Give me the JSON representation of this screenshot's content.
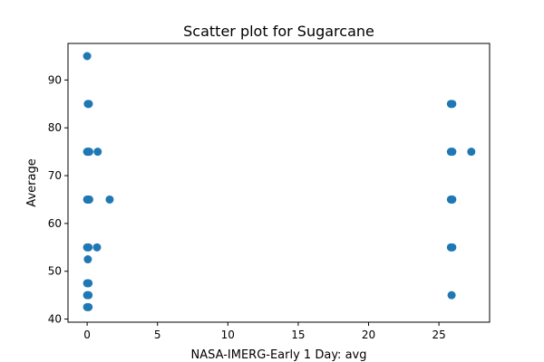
{
  "chart_data": {
    "type": "scatter",
    "title": "Scatter plot for Sugarcane",
    "xlabel": "NASA-IMERG-Early 1 Day: avg",
    "ylabel": "Average",
    "xlim": [
      -1.36,
      28.6
    ],
    "ylim": [
      39.35,
      97.65
    ],
    "x_ticks": [
      0,
      5,
      10,
      15,
      20,
      25
    ],
    "y_ticks": [
      40,
      50,
      60,
      70,
      80,
      90
    ],
    "x_tick_labels": [
      "0",
      "5",
      "10",
      "15",
      "20",
      "25"
    ],
    "y_tick_labels": [
      "40",
      "50",
      "60",
      "70",
      "80",
      "90"
    ],
    "grid": false,
    "marker_color": "#1f77b4",
    "series": [
      {
        "points": [
          {
            "x": 0.0,
            "y": 95
          },
          {
            "x": 0.05,
            "y": 85
          },
          {
            "x": 0.12,
            "y": 85
          },
          {
            "x": 0.0,
            "y": 75
          },
          {
            "x": 0.05,
            "y": 75
          },
          {
            "x": 0.1,
            "y": 75
          },
          {
            "x": 0.15,
            "y": 75
          },
          {
            "x": 0.75,
            "y": 75
          },
          {
            "x": 0.0,
            "y": 65
          },
          {
            "x": 0.05,
            "y": 65
          },
          {
            "x": 0.1,
            "y": 65
          },
          {
            "x": 0.15,
            "y": 65
          },
          {
            "x": 1.6,
            "y": 65
          },
          {
            "x": 0.0,
            "y": 55
          },
          {
            "x": 0.1,
            "y": 55
          },
          {
            "x": 0.7,
            "y": 55
          },
          {
            "x": 0.05,
            "y": 52.5
          },
          {
            "x": 0.0,
            "y": 47.5
          },
          {
            "x": 0.1,
            "y": 47.5
          },
          {
            "x": 0.0,
            "y": 45
          },
          {
            "x": 0.1,
            "y": 45
          },
          {
            "x": 0.0,
            "y": 42.5
          },
          {
            "x": 0.1,
            "y": 42.5
          },
          {
            "x": 25.85,
            "y": 85
          },
          {
            "x": 25.95,
            "y": 85
          },
          {
            "x": 25.85,
            "y": 75
          },
          {
            "x": 25.95,
            "y": 75
          },
          {
            "x": 27.3,
            "y": 75
          },
          {
            "x": 25.85,
            "y": 65
          },
          {
            "x": 25.9,
            "y": 65
          },
          {
            "x": 25.95,
            "y": 65
          },
          {
            "x": 25.85,
            "y": 55
          },
          {
            "x": 25.95,
            "y": 55
          },
          {
            "x": 25.9,
            "y": 45
          }
        ]
      }
    ]
  }
}
